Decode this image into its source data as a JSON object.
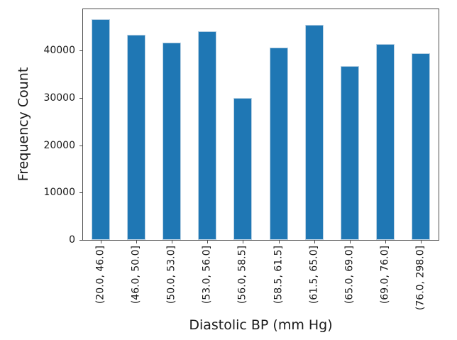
{
  "chart_data": {
    "type": "bar",
    "title": "",
    "xlabel": "Diastolic BP (mm Hg)",
    "ylabel": "Frequency Count",
    "categories": [
      "(20.0, 46.0]",
      "(46.0, 50.0]",
      "(50.0, 53.0]",
      "(53.0, 56.0]",
      "(56.0, 58.5]",
      "(58.5, 61.5]",
      "(61.5, 65.0]",
      "(65.0, 69.0]",
      "(69.0, 76.0]",
      "(76.0, 298.0]"
    ],
    "values": [
      46600,
      43300,
      41700,
      44100,
      30000,
      40600,
      45400,
      36700,
      41400,
      39400
    ],
    "yticks": [
      0,
      10000,
      20000,
      30000,
      40000
    ],
    "ylim": [
      0,
      48700
    ],
    "grid": false,
    "legend": "none",
    "bar_color": "#1f77b4",
    "bar_edge_color": "#bad2e4",
    "axis_color": "#4d4d4d",
    "text_color": "#1a1a1a",
    "background_color": "#ffffff"
  }
}
